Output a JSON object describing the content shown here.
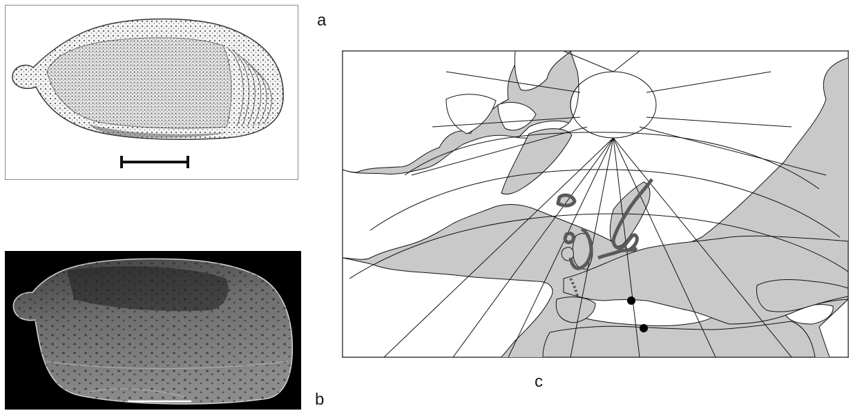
{
  "panels": {
    "a": {
      "label": "a"
    },
    "b": {
      "label": "b"
    },
    "c": {
      "label": "c"
    }
  },
  "colors": {
    "land": "#ffffff",
    "sea": "#c9c9c9",
    "coastline": "#111111",
    "range_outline": "#5a5a5a",
    "fossil_site": "#000000",
    "sem_background": "#000000"
  },
  "icons": {
    "scale_bar_a": "scale-bar-icon",
    "scale_bar_b": "scale-bar-icon",
    "fossil_site": "filled-circle-icon"
  }
}
